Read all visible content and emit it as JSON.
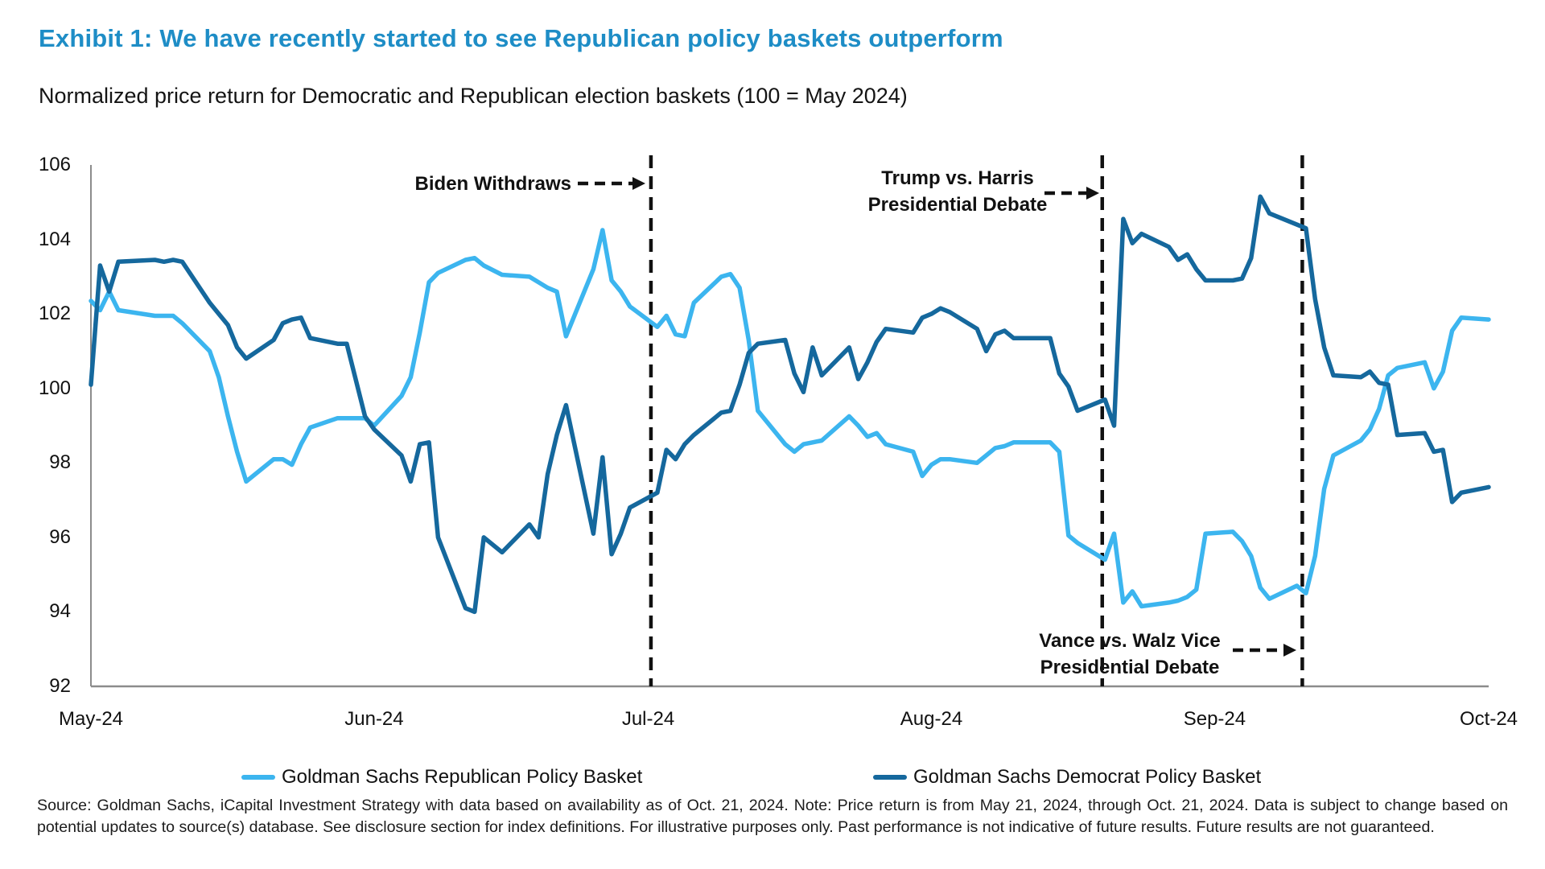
{
  "header": {
    "title": "Exhibit 1: We have recently started to see Republican policy baskets outperform",
    "subtitle": "Normalized price return for Democratic and Republican election baskets (100 = May 2024)"
  },
  "chart_data": {
    "type": "line",
    "title": "Exhibit 1: We have recently started to see Republican policy baskets outperform",
    "subtitle": "Normalized price return for Democratic and Republican election baskets (100 = May 2024)",
    "grid": false,
    "legend_position": "bottom",
    "y_axis": {
      "min": 92,
      "max": 106,
      "step": 2,
      "ticks": [
        106,
        104,
        102,
        100,
        98,
        96,
        94,
        92
      ]
    },
    "x_axis": {
      "tick_labels": [
        "May-24",
        "Jun-24",
        "Jul-24",
        "Aug-24",
        "Sep-24",
        "Oct-24"
      ],
      "tick_days": [
        0,
        31,
        61,
        92,
        123,
        153
      ],
      "total_days": 153
    },
    "days": [
      0,
      1,
      2,
      3,
      7,
      8,
      9,
      10,
      13,
      14,
      15,
      16,
      17,
      20,
      21,
      22,
      23,
      24,
      27,
      28,
      30,
      31,
      34,
      35,
      36,
      37,
      38,
      41,
      42,
      43,
      45,
      48,
      49,
      50,
      51,
      52,
      55,
      56,
      57,
      58,
      59,
      62,
      63,
      64,
      65,
      66,
      69,
      70,
      71,
      72,
      73,
      76,
      77,
      78,
      79,
      80,
      83,
      84,
      85,
      86,
      87,
      90,
      91,
      92,
      93,
      94,
      97,
      98,
      99,
      100,
      101,
      105,
      106,
      107,
      108,
      111,
      112,
      113,
      114,
      115,
      118,
      119,
      120,
      121,
      122,
      125,
      126,
      127,
      128,
      129,
      132,
      133,
      134,
      135,
      136,
      139,
      140,
      141,
      142,
      143,
      146,
      147,
      148,
      149,
      150,
      153
    ],
    "series": [
      {
        "name": "Goldman Sachs Republican Policy Basket",
        "color": "#3cb5ef",
        "values": [
          102.35,
          102.1,
          102.6,
          102.1,
          101.95,
          101.95,
          101.95,
          101.75,
          101.0,
          100.3,
          99.25,
          98.3,
          97.5,
          98.1,
          98.1,
          97.95,
          98.5,
          98.95,
          99.2,
          99.2,
          99.2,
          99.0,
          99.8,
          100.3,
          101.5,
          102.85,
          103.1,
          103.45,
          103.5,
          103.3,
          103.05,
          103.0,
          102.85,
          102.7,
          102.6,
          101.4,
          103.2,
          104.25,
          102.9,
          102.6,
          102.2,
          101.65,
          101.95,
          101.45,
          101.4,
          102.3,
          103.0,
          103.07,
          102.7,
          101.3,
          99.4,
          98.5,
          98.3,
          98.5,
          98.55,
          98.6,
          99.25,
          99.0,
          98.7,
          98.8,
          98.5,
          98.3,
          97.65,
          97.95,
          98.1,
          98.1,
          98.0,
          98.2,
          98.4,
          98.45,
          98.55,
          98.55,
          98.3,
          96.05,
          95.85,
          95.4,
          96.1,
          94.25,
          94.55,
          94.15,
          94.25,
          94.3,
          94.4,
          94.6,
          96.1,
          96.15,
          95.9,
          95.5,
          94.65,
          94.35,
          94.7,
          94.5,
          95.5,
          97.3,
          98.2,
          98.6,
          98.9,
          99.45,
          100.35,
          100.55,
          100.7,
          100.0,
          100.45,
          101.55,
          101.9,
          101.85
        ]
      },
      {
        "name": "Goldman Sachs Democrat Policy Basket",
        "color": "#15689d",
        "values": [
          100.1,
          103.3,
          102.6,
          103.4,
          103.45,
          103.4,
          103.45,
          103.4,
          102.3,
          102.0,
          101.7,
          101.1,
          100.8,
          101.3,
          101.75,
          101.85,
          101.9,
          101.35,
          101.2,
          101.2,
          99.25,
          98.9,
          98.2,
          97.5,
          98.5,
          98.55,
          96.0,
          94.1,
          94.0,
          96.0,
          95.6,
          96.35,
          96.0,
          97.7,
          98.75,
          99.55,
          96.1,
          98.15,
          95.55,
          96.1,
          96.8,
          97.2,
          98.35,
          98.1,
          98.5,
          98.75,
          99.35,
          99.4,
          100.1,
          100.95,
          101.2,
          101.3,
          100.4,
          99.9,
          101.1,
          100.35,
          101.1,
          100.25,
          100.7,
          101.25,
          101.6,
          101.5,
          101.9,
          102.0,
          102.15,
          102.05,
          101.6,
          101.0,
          101.45,
          101.55,
          101.35,
          101.35,
          100.4,
          100.05,
          99.4,
          99.7,
          99.0,
          104.55,
          103.9,
          104.15,
          103.8,
          103.45,
          103.6,
          103.2,
          102.9,
          102.9,
          102.95,
          103.5,
          105.15,
          104.7,
          104.4,
          104.3,
          102.4,
          101.1,
          100.35,
          100.3,
          100.45,
          100.15,
          100.1,
          98.75,
          98.8,
          98.3,
          98.35,
          96.95,
          97.2,
          97.35
        ]
      }
    ],
    "events": [
      {
        "label": "Biden Withdraws",
        "day": 61.3
      },
      {
        "label": "Trump vs. Harris\nPresidential Debate",
        "day": 110.7
      },
      {
        "label": "Vance vs. Walz Vice\nPresidential Debate",
        "day": 132.6
      }
    ]
  },
  "legend": {
    "items": [
      {
        "label": "Goldman Sachs Republican Policy Basket",
        "color": "#3cb5ef"
      },
      {
        "label": "Goldman Sachs Democrat Policy Basket",
        "color": "#15689d"
      }
    ]
  },
  "footer": {
    "source_text": "Source: Goldman Sachs, iCapital Investment Strategy with data based on availability as of Oct. 21, 2024. Note: Price return is from May 21, 2024, through Oct. 21, 2024. Data is subject to change based on potential updates to source(s) database. See disclosure section for index definitions. For illustrative purposes only. Past performance is not indicative of future results. Future results are not guaranteed."
  }
}
